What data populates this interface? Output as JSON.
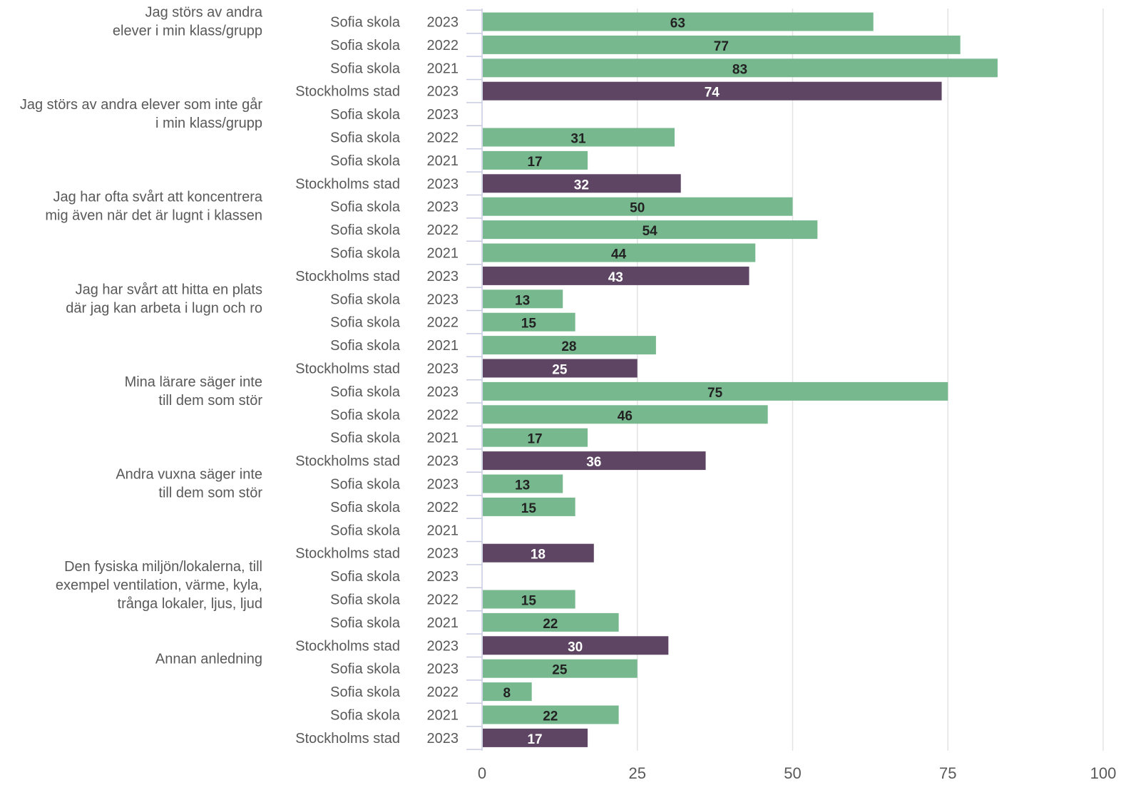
{
  "chart_data": {
    "type": "bar",
    "orientation": "horizontal",
    "xlim": [
      0,
      100
    ],
    "x_ticks": [
      "0",
      "25",
      "50",
      "75",
      "100"
    ],
    "grid": true,
    "colors": {
      "Sofia skola": "#77b88f",
      "Stockholms stad": "#5e4563"
    },
    "groups": [
      {
        "label": "Jag störs av andra\nelever i min klass/grupp",
        "rows": [
          {
            "unit": "Sofia skola",
            "year": "2023",
            "value": 63
          },
          {
            "unit": "Sofia skola",
            "year": "2022",
            "value": 77
          },
          {
            "unit": "Sofia skola",
            "year": "2021",
            "value": 83
          },
          {
            "unit": "Stockholms stad",
            "year": "2023",
            "value": 74
          }
        ]
      },
      {
        "label": "Jag störs av andra elever som inte går\ni min klass/grupp",
        "rows": [
          {
            "unit": "Sofia skola",
            "year": "2023",
            "value": null
          },
          {
            "unit": "Sofia skola",
            "year": "2022",
            "value": 31
          },
          {
            "unit": "Sofia skola",
            "year": "2021",
            "value": 17
          },
          {
            "unit": "Stockholms stad",
            "year": "2023",
            "value": 32
          }
        ]
      },
      {
        "label": "Jag har ofta svårt att koncentrera\nmig även när det är lugnt i klassen",
        "rows": [
          {
            "unit": "Sofia skola",
            "year": "2023",
            "value": 50
          },
          {
            "unit": "Sofia skola",
            "year": "2022",
            "value": 54
          },
          {
            "unit": "Sofia skola",
            "year": "2021",
            "value": 44
          },
          {
            "unit": "Stockholms stad",
            "year": "2023",
            "value": 43
          }
        ]
      },
      {
        "label": "Jag har svårt att hitta en plats\ndär jag kan arbeta i lugn och ro",
        "rows": [
          {
            "unit": "Sofia skola",
            "year": "2023",
            "value": 13
          },
          {
            "unit": "Sofia skola",
            "year": "2022",
            "value": 15
          },
          {
            "unit": "Sofia skola",
            "year": "2021",
            "value": 28
          },
          {
            "unit": "Stockholms stad",
            "year": "2023",
            "value": 25
          }
        ]
      },
      {
        "label": "Mina lärare säger inte\ntill dem som stör",
        "rows": [
          {
            "unit": "Sofia skola",
            "year": "2023",
            "value": 75
          },
          {
            "unit": "Sofia skola",
            "year": "2022",
            "value": 46
          },
          {
            "unit": "Sofia skola",
            "year": "2021",
            "value": 17
          },
          {
            "unit": "Stockholms stad",
            "year": "2023",
            "value": 36
          }
        ]
      },
      {
        "label": "Andra vuxna säger inte\ntill dem som stör",
        "rows": [
          {
            "unit": "Sofia skola",
            "year": "2023",
            "value": 13
          },
          {
            "unit": "Sofia skola",
            "year": "2022",
            "value": 15
          },
          {
            "unit": "Sofia skola",
            "year": "2021",
            "value": null
          },
          {
            "unit": "Stockholms stad",
            "year": "2023",
            "value": 18
          }
        ]
      },
      {
        "label": "Den fysiska miljön/lokalerna, till\nexempel ventilation, värme, kyla,\ntrånga lokaler, ljus, ljud",
        "rows": [
          {
            "unit": "Sofia skola",
            "year": "2023",
            "value": null
          },
          {
            "unit": "Sofia skola",
            "year": "2022",
            "value": 15
          },
          {
            "unit": "Sofia skola",
            "year": "2021",
            "value": 22
          },
          {
            "unit": "Stockholms stad",
            "year": "2023",
            "value": 30
          }
        ]
      },
      {
        "label": "Annan anledning",
        "rows": [
          {
            "unit": "Sofia skola",
            "year": "2023",
            "value": 25
          },
          {
            "unit": "Sofia skola",
            "year": "2022",
            "value": 8
          },
          {
            "unit": "Sofia skola",
            "year": "2021",
            "value": 22
          },
          {
            "unit": "Stockholms stad",
            "year": "2023",
            "value": 17
          }
        ]
      }
    ]
  }
}
